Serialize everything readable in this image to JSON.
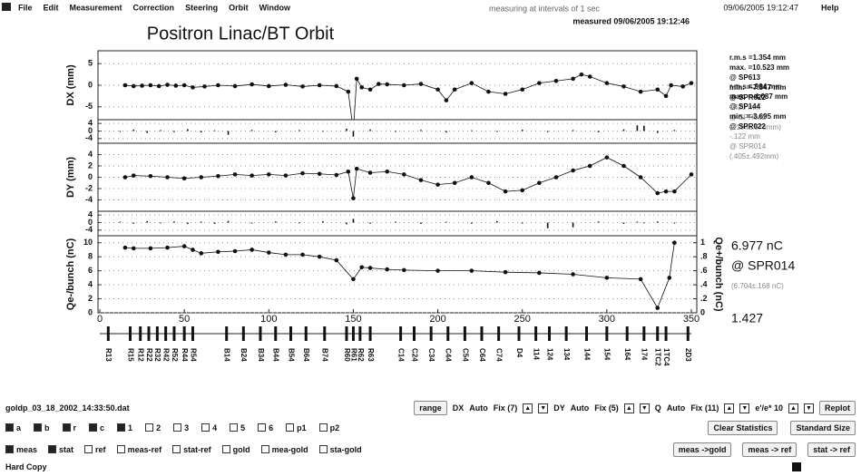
{
  "menu": {
    "items": [
      "File",
      "Edit",
      "Measurement",
      "Correction",
      "Steering",
      "Orbit",
      "Window"
    ],
    "clock": "09/06/2005 19:12:47",
    "help": "Help"
  },
  "header": {
    "title": "Positron Linac/BT Orbit",
    "interval": "measuring at intervals of 1 sec",
    "measured": "measured  09/06/2005 19:12:46"
  },
  "chart_data": [
    {
      "type": "line",
      "y_label": "DX (mm)",
      "xlim": [
        0,
        350
      ],
      "ylim": [
        -8,
        8
      ],
      "yticks": [
        -5,
        0,
        5
      ],
      "x": [
        15,
        20,
        25,
        30,
        35,
        40,
        45,
        50,
        55,
        62,
        70,
        80,
        90,
        100,
        110,
        120,
        130,
        140,
        147,
        150,
        152,
        155,
        160,
        165,
        170,
        180,
        190,
        200,
        205,
        210,
        220,
        230,
        240,
        250,
        260,
        270,
        280,
        285,
        290,
        300,
        310,
        320,
        330,
        335,
        338,
        345,
        350
      ],
      "series": [
        {
          "color": "#111111",
          "values": [
            0,
            -0.2,
            -0.1,
            0,
            -0.2,
            0.1,
            -0.1,
            0,
            -0.5,
            -0.3,
            0,
            -0.2,
            0.2,
            -0.2,
            0.1,
            -0.3,
            0,
            -0.2,
            -1.5,
            -10.5,
            1.5,
            -0.5,
            -1,
            0.3,
            0.2,
            0,
            0.3,
            -1,
            -3.5,
            -1,
            0.5,
            -1.5,
            -2,
            -1,
            0.5,
            1,
            1.5,
            2.5,
            2,
            0.5,
            -0.3,
            -1.5,
            -1,
            -2.5,
            0,
            -0.3,
            0.5
          ]
        }
      ]
    },
    {
      "type": "bar",
      "xlim": [
        0,
        350
      ],
      "ylim": [
        -6,
        6
      ],
      "yticks": [
        -4,
        0,
        4
      ],
      "color": "#111111",
      "x": [
        12,
        20,
        28,
        36,
        44,
        52,
        60,
        68,
        76,
        90,
        104,
        118,
        132,
        146,
        150,
        160,
        175,
        190,
        205,
        220,
        235,
        250,
        265,
        280,
        295,
        310,
        318,
        322,
        330,
        340
      ],
      "values": [
        -0.5,
        0.8,
        -1,
        0.5,
        -0.6,
        1,
        -0.8,
        0.4,
        -2,
        0.6,
        -0.7,
        0.5,
        -0.4,
        1.2,
        -3,
        0.8,
        -0.5,
        0.6,
        -0.8,
        0.4,
        -0.5,
        0.7,
        -0.6,
        0.5,
        -0.7,
        0.9,
        3,
        2.8,
        -1,
        0.6
      ]
    },
    {
      "type": "line",
      "y_label": "DY (mm)",
      "xlim": [
        0,
        350
      ],
      "ylim": [
        -6,
        6
      ],
      "yticks": [
        -4,
        -2,
        0,
        2,
        4
      ],
      "x": [
        15,
        20,
        30,
        40,
        50,
        60,
        70,
        80,
        90,
        100,
        110,
        120,
        130,
        140,
        147,
        150,
        152,
        160,
        170,
        180,
        190,
        200,
        210,
        220,
        230,
        240,
        250,
        260,
        270,
        280,
        290,
        300,
        310,
        320,
        330,
        335,
        340,
        350
      ],
      "series": [
        {
          "color": "#111111",
          "values": [
            0,
            0.3,
            0.2,
            0,
            -0.2,
            0,
            0.2,
            0.5,
            0.3,
            0.5,
            0.3,
            0.7,
            0.6,
            0.4,
            1,
            -3.7,
            1.5,
            0.8,
            1,
            0.5,
            -0.5,
            -1.3,
            -1,
            0,
            -1,
            -2.5,
            -2.3,
            -1,
            0,
            1.2,
            2,
            3.5,
            2,
            0,
            -2.8,
            -2.5,
            -2.5,
            0.5
          ]
        }
      ]
    },
    {
      "type": "bar",
      "xlim": [
        0,
        350
      ],
      "ylim": [
        -6,
        6
      ],
      "yticks": [
        -4,
        0,
        4
      ],
      "color": "#111111",
      "x": [
        12,
        20,
        28,
        36,
        44,
        52,
        60,
        68,
        76,
        90,
        104,
        118,
        132,
        146,
        150,
        160,
        175,
        190,
        205,
        220,
        235,
        250,
        265,
        280,
        295,
        310,
        318,
        322,
        330,
        340
      ],
      "values": [
        0.5,
        -0.6,
        0.8,
        -0.4,
        0.6,
        -0.8,
        0.5,
        -0.7,
        0.9,
        -0.5,
        0.6,
        -0.4,
        0.7,
        -0.9,
        2,
        -0.6,
        0.5,
        -0.7,
        0.4,
        -0.6,
        0.8,
        -0.5,
        -3,
        -2.5,
        0.6,
        -0.7,
        0.5,
        -0.4,
        0.6,
        -0.5
      ]
    },
    {
      "type": "line",
      "y_label": "Qe-/bunch (nC)",
      "y2_label": "Qe+/bunch (nC)",
      "xlim": [
        0,
        350
      ],
      "ylim": [
        0,
        11
      ],
      "yticks": [
        0,
        2,
        4,
        6,
        8,
        10
      ],
      "y2lim": [
        0,
        1.1
      ],
      "y2ticks": [
        0,
        {
          "value": 0.2,
          "label": ".2"
        },
        {
          "value": 0.4,
          "label": ".4"
        },
        {
          "value": 0.6,
          "label": ".6"
        },
        {
          "value": 0.8,
          "label": ".8"
        },
        1
      ],
      "xticks": [
        0,
        50,
        100,
        150,
        200,
        250,
        300,
        350
      ],
      "x": [
        15,
        20,
        30,
        40,
        50,
        55,
        60,
        70,
        80,
        90,
        100,
        110,
        120,
        130,
        140,
        150,
        155,
        160,
        170,
        180,
        200,
        220,
        240,
        260,
        280,
        300,
        320,
        330,
        337,
        340
      ],
      "series": [
        {
          "color": "#111111",
          "values": [
            9.3,
            9.2,
            9.2,
            9.3,
            9.5,
            9,
            8.5,
            8.7,
            8.8,
            9,
            8.6,
            8.3,
            8.3,
            8,
            7.5,
            4.8,
            6.5,
            6.4,
            6.2,
            6.1,
            6,
            6,
            5.8,
            5.7,
            5.5,
            5,
            4.8,
            0.7,
            5,
            10
          ]
        }
      ]
    }
  ],
  "beamline": {
    "elements": [
      {
        "name": "R13",
        "x": 5
      },
      {
        "name": "R15",
        "x": 18
      },
      {
        "name": "R12",
        "x": 24
      },
      {
        "name": "R22",
        "x": 29
      },
      {
        "name": "R32",
        "x": 34
      },
      {
        "name": "R42",
        "x": 39
      },
      {
        "name": "R52",
        "x": 44
      },
      {
        "name": "R44",
        "x": 50
      },
      {
        "name": "R54",
        "x": 55
      },
      {
        "name": "B14",
        "x": 75
      },
      {
        "name": "B24",
        "x": 85
      },
      {
        "name": "B34",
        "x": 95
      },
      {
        "name": "B44",
        "x": 104
      },
      {
        "name": "B54",
        "x": 113
      },
      {
        "name": "B64",
        "x": 122
      },
      {
        "name": "B74",
        "x": 133
      },
      {
        "name": "R60",
        "x": 146
      },
      {
        "name": "R61",
        "x": 150
      },
      {
        "name": "R62",
        "x": 154
      },
      {
        "name": "R63",
        "x": 160
      },
      {
        "name": "C14",
        "x": 178
      },
      {
        "name": "C24",
        "x": 186
      },
      {
        "name": "C34",
        "x": 196
      },
      {
        "name": "C44",
        "x": 206
      },
      {
        "name": "C54",
        "x": 216
      },
      {
        "name": "C64",
        "x": 226
      },
      {
        "name": "C74",
        "x": 236
      },
      {
        "name": "D4",
        "x": 248
      },
      {
        "name": "114",
        "x": 258
      },
      {
        "name": "124",
        "x": 266
      },
      {
        "name": "134",
        "x": 276
      },
      {
        "name": "144",
        "x": 288
      },
      {
        "name": "154",
        "x": 300
      },
      {
        "name": "164",
        "x": 312
      },
      {
        "name": "174",
        "x": 322
      },
      {
        "name": "1TC2",
        "x": 330
      },
      {
        "name": "1TC4",
        "x": 335
      },
      {
        "name": "2D3",
        "x": 348
      }
    ]
  },
  "stats": {
    "dx": [
      "r.m.s =1.354 mm",
      "max. =10.523 mm",
      "@ SP613",
      "min. =-7.847 mm",
      "@ SPR022",
      "-.420 mm",
      "@ SPR062",
      "(-.194±.576mm)"
    ],
    "dy": [
      "r.m.s =.964 mm",
      "max. =-4.087 mm",
      "@ SP144",
      "min. =-3.695 mm",
      "@ SPR022",
      "-.122 mm",
      "@ SPR014",
      "(.405±.492mm)"
    ],
    "q": [
      "6.977 nC",
      "@ SPR014",
      "(6.704±.168 nC)",
      "1.427"
    ]
  },
  "controls": {
    "file": "goldp_03_18_2002_14:33:50.dat",
    "range": "range",
    "range_groups": [
      {
        "axis": "DX",
        "mode": "Auto",
        "fix": "Fix (7)"
      },
      {
        "axis": "DY",
        "mode": "Auto",
        "fix": "Fix (5)"
      },
      {
        "axis": "Q",
        "mode": "Auto",
        "fix": "Fix (11)"
      }
    ],
    "ratio": "e'/e* 10",
    "replot": "Replot",
    "selectors": [
      "a",
      "b",
      "r",
      "c",
      "1",
      "2",
      "3",
      "4",
      "5",
      "6",
      "p1",
      "p2"
    ],
    "clear": "Clear Statistics",
    "standard": "Standard Size",
    "displays": [
      "meas",
      "stat",
      "ref",
      "meas-ref",
      "stat-ref",
      "gold",
      "mea-gold",
      "sta-gold"
    ],
    "copy_buttons": [
      "meas ->gold",
      "meas -> ref",
      "stat -> ref"
    ],
    "status": "Hard Copy"
  }
}
